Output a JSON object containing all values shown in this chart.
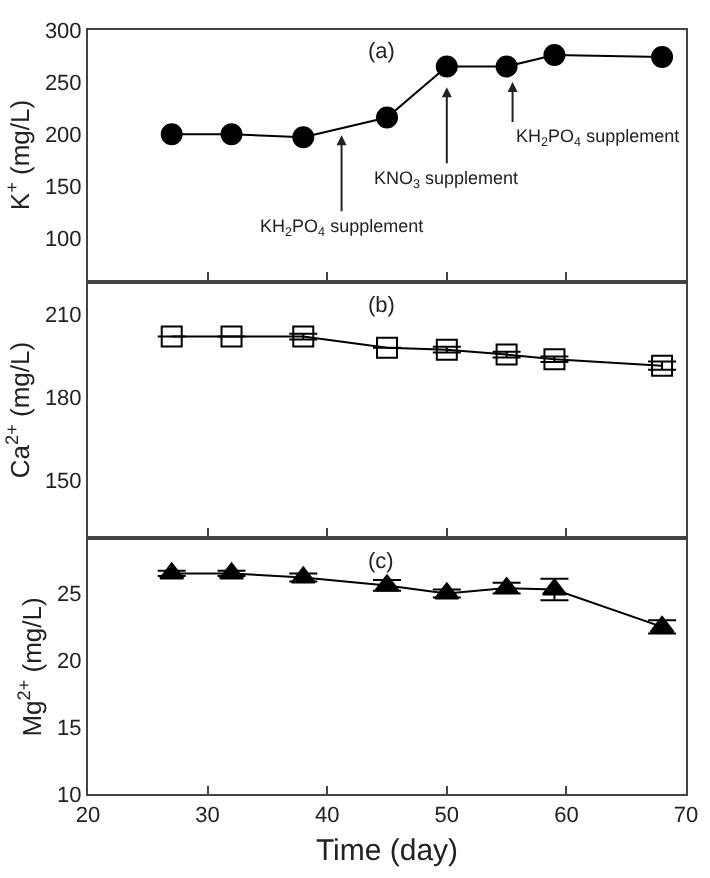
{
  "chart_data": [
    {
      "type": "line",
      "ylabel": "K$^{+}$ (mg/L)",
      "x": [
        27,
        32,
        38,
        45,
        50,
        55,
        59,
        68
      ],
      "xlim": [
        20,
        70
      ],
      "xticks": [
        20,
        30,
        40,
        50,
        60,
        70
      ],
      "ylim": [
        60,
        300
      ],
      "yticks": [
        100,
        150,
        200,
        250,
        300
      ],
      "tick_labels": "y",
      "marker": "circle",
      "line_style": "solid",
      "grid": false,
      "series": [
        {
          "color": "#000000",
          "values": [
            200,
            200,
            197,
            216,
            265,
            265,
            276,
            274
          ]
        }
      ],
      "annotations": [
        "(a)",
        {
          "text": "KH$_{2}$PO$_{4}$ supplement",
          "x": 41.2,
          "y": 199
        },
        {
          "text": "KNO$_{3}$ supplement",
          "x": 50,
          "y": 245
        },
        {
          "text": "KH$_{2}$PO$_{4}$ supplement",
          "x": 55.5,
          "y": 250
        }
      ]
    },
    {
      "type": "line",
      "ylabel": "Ca$^{2+}$ (mg/L)",
      "x": [
        27,
        32,
        38,
        45,
        50,
        55,
        59,
        68
      ],
      "xlim": [
        20,
        70
      ],
      "xticks": [
        20,
        30,
        40,
        50,
        60,
        70
      ],
      "ylim": [
        130,
        221
      ],
      "yticks": [
        150,
        180,
        210
      ],
      "tick_labels": "y",
      "marker": "square",
      "line_style": "solid",
      "grid": false,
      "series": [
        {
          "color": "#000000",
          "values": [
            202,
            202,
            202,
            198,
            197.3,
            195.5,
            193.8,
            191.5
          ],
          "errors": [
            null,
            null,
            1,
            null,
            1,
            1,
            1,
            1.5
          ]
        }
      ],
      "annotations": [
        "(b)"
      ]
    },
    {
      "type": "line",
      "xlabel": "Time (day)",
      "ylabel": "Mg$^{2+}$ (mg/L)",
      "x": [
        27,
        32,
        38,
        45,
        50,
        55,
        59,
        68
      ],
      "xlim": [
        20,
        70
      ],
      "xticks": [
        20,
        30,
        40,
        50,
        60,
        70
      ],
      "ylim": [
        10,
        29
      ],
      "yticks": [
        10,
        15,
        20,
        25
      ],
      "marker": "triangle",
      "line_style": "solid",
      "grid": false,
      "series": [
        {
          "color": "#000000",
          "values": [
            26.5,
            26.5,
            26.2,
            25.6,
            25.0,
            25.4,
            25.3,
            22.5
          ],
          "errors": [
            0.2,
            0.2,
            0.3,
            0.4,
            0.3,
            0.4,
            0.8,
            0.5
          ]
        }
      ],
      "annotations": [
        "(c)"
      ]
    }
  ]
}
